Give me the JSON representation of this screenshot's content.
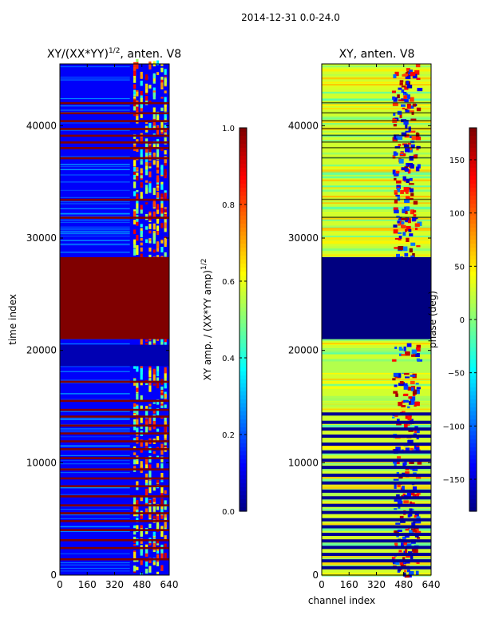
{
  "figure": {
    "suptitle": "2014-12-31 0.0-24.0"
  },
  "chart_data": [
    {
      "type": "heatmap",
      "title_main": "XY/(XX*YY)",
      "title_sup": "1/2",
      "title_tail": ", anten. V8",
      "ylabel": "time index",
      "xlabel": "",
      "xlim": [
        0,
        640
      ],
      "ylim": [
        0,
        45500
      ],
      "xticks": [
        "0",
        "160",
        "320",
        "480",
        "640"
      ],
      "yticks": [
        "0",
        "10000",
        "20000",
        "30000",
        "40000"
      ],
      "colorbar": {
        "label": "XY amp. / (XX*YY amp)",
        "label_sup": "1/2",
        "range": [
          0.0,
          1.0
        ],
        "ticks": [
          "0.0",
          "0.2",
          "0.4",
          "0.6",
          "0.8",
          "1.0"
        ]
      },
      "saturated_time_block": [
        21000,
        28300
      ],
      "active_channel_band": [
        410,
        640
      ],
      "flagged_rows": [
        1500,
        2500,
        3200,
        4100,
        4900,
        5600,
        6300,
        7100,
        8000,
        8700,
        9500,
        10500,
        11300,
        12000,
        12700,
        13400,
        14200,
        14800,
        15600,
        17300,
        31900,
        33500,
        37200,
        38100,
        38600,
        39200,
        39800,
        40500,
        41200,
        42100
      ]
    },
    {
      "type": "heatmap",
      "title": "XY, anten. V8",
      "ylabel": "",
      "xlabel": "channel index",
      "xlim": [
        0,
        640
      ],
      "ylim": [
        0,
        45500
      ],
      "xticks": [
        "0",
        "160",
        "320",
        "480",
        "640"
      ],
      "yticks": [
        "0",
        "10000",
        "20000",
        "30000",
        "40000"
      ],
      "colorbar": {
        "label": "phase (deg)",
        "range": [
          -180,
          180
        ],
        "ticks": [
          "−150",
          "−100",
          "−50",
          "0",
          "50",
          "100",
          "150"
        ]
      },
      "flagged_time_block": [
        21000,
        28300
      ],
      "active_channel_band": [
        410,
        560
      ]
    }
  ]
}
